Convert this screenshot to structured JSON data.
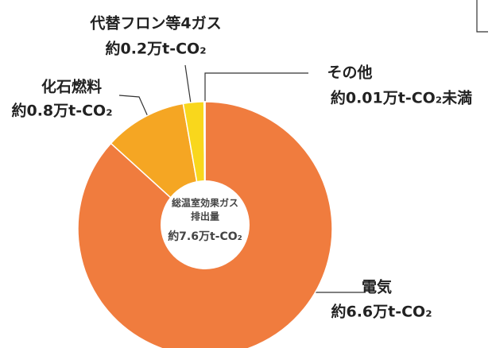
{
  "chart_data": {
    "type": "pie",
    "categories": [
      "電気",
      "化石燃料",
      "代替フロン等4ガス",
      "その他"
    ],
    "values": [
      6.6,
      0.8,
      0.2,
      0.01
    ],
    "value_labels": [
      "約6.6万t-CO₂",
      "約0.8万t-CO₂",
      "約0.2万t-CO₂",
      "約0.01万t-CO₂未満"
    ],
    "colors": [
      "#f07c3e",
      "#f5a623",
      "#f9d71c",
      "#8dc63f"
    ],
    "center_label": [
      "総温室効果ガス",
      "排出量"
    ],
    "center_value": "約7.6万t-CO₂"
  }
}
